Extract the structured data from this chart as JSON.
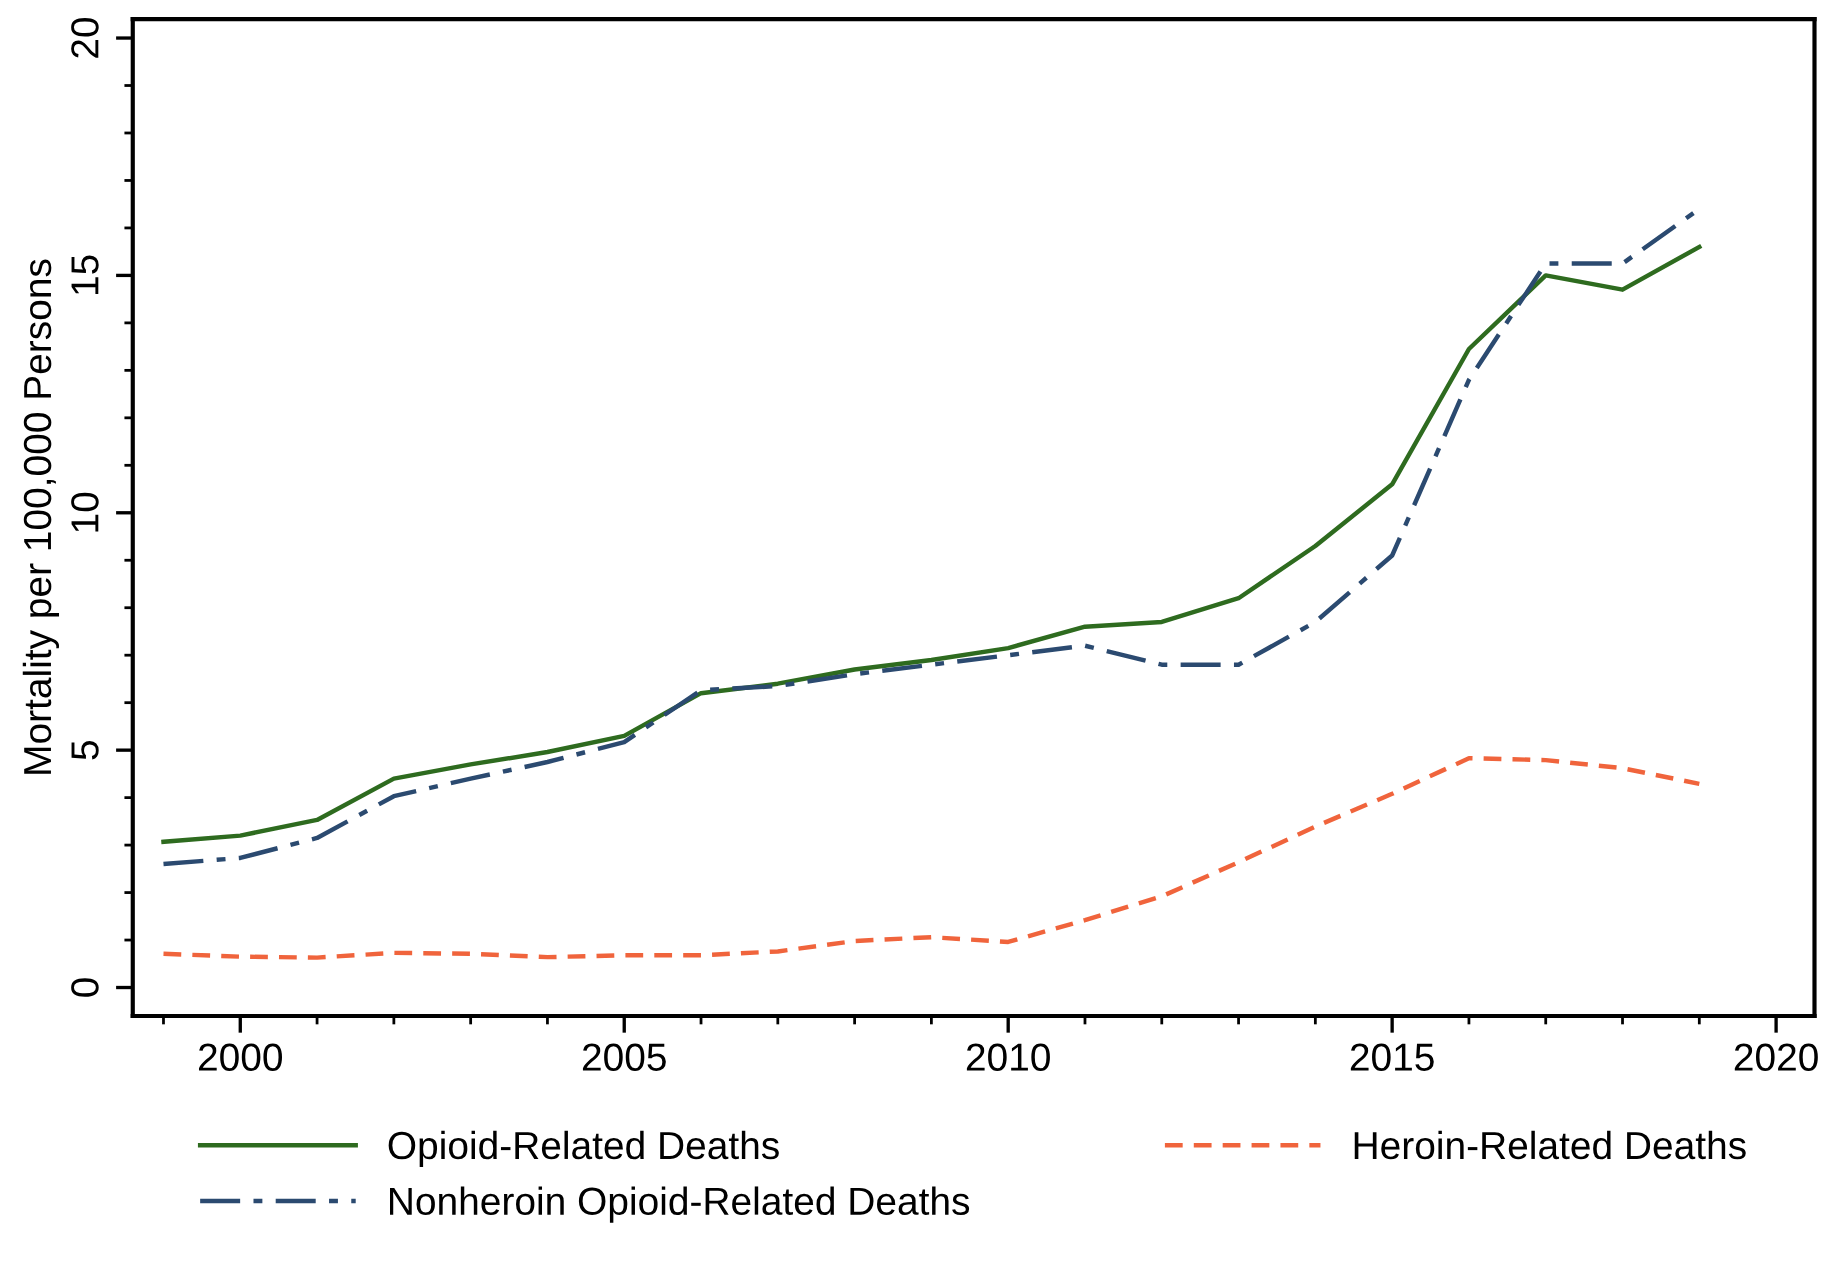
{
  "chart_data": {
    "type": "line",
    "ylabel": "Mortality per 100,000 Persons",
    "x": [
      1999,
      2000,
      2001,
      2002,
      2003,
      2004,
      2005,
      2006,
      2007,
      2008,
      2009,
      2010,
      2011,
      2012,
      2013,
      2014,
      2015,
      2016,
      2017,
      2018,
      2019
    ],
    "series": [
      {
        "name": "Opioid-Related Deaths",
        "color": "#2e6b1f",
        "line_style": "solid",
        "values": [
          3.07,
          3.2,
          3.53,
          4.4,
          4.7,
          4.96,
          5.3,
          6.2,
          6.4,
          6.7,
          6.9,
          7.15,
          7.6,
          7.7,
          8.2,
          9.3,
          10.6,
          13.45,
          15.0,
          14.7,
          15.6
        ]
      },
      {
        "name": "Heroin-Related Deaths",
        "color": "#f0643c",
        "line_style": "dashed",
        "values": [
          0.71,
          0.65,
          0.63,
          0.73,
          0.71,
          0.64,
          0.68,
          0.68,
          0.76,
          0.98,
          1.06,
          0.96,
          1.42,
          1.92,
          2.64,
          3.39,
          4.08,
          4.83,
          4.79,
          4.62,
          4.29
        ]
      },
      {
        "name": "Nonheroin Opioid-Related Deaths",
        "color": "#2b4a70",
        "line_style": "dashdot",
        "values": [
          2.6,
          2.73,
          3.15,
          4.03,
          4.4,
          4.75,
          5.17,
          6.26,
          6.35,
          6.6,
          6.8,
          7.0,
          7.2,
          6.8,
          6.8,
          7.7,
          9.1,
          12.8,
          15.25,
          15.25,
          16.4
        ]
      }
    ],
    "xlim": [
      1998.6,
      2020.5
    ],
    "xticks": [
      2000,
      2005,
      2010,
      2015,
      2020
    ],
    "ylim": [
      -0.6,
      20.4
    ],
    "yticks": [
      0,
      5,
      10,
      15,
      20
    ],
    "grid": false,
    "legend": "bottom",
    "marker": "none"
  }
}
